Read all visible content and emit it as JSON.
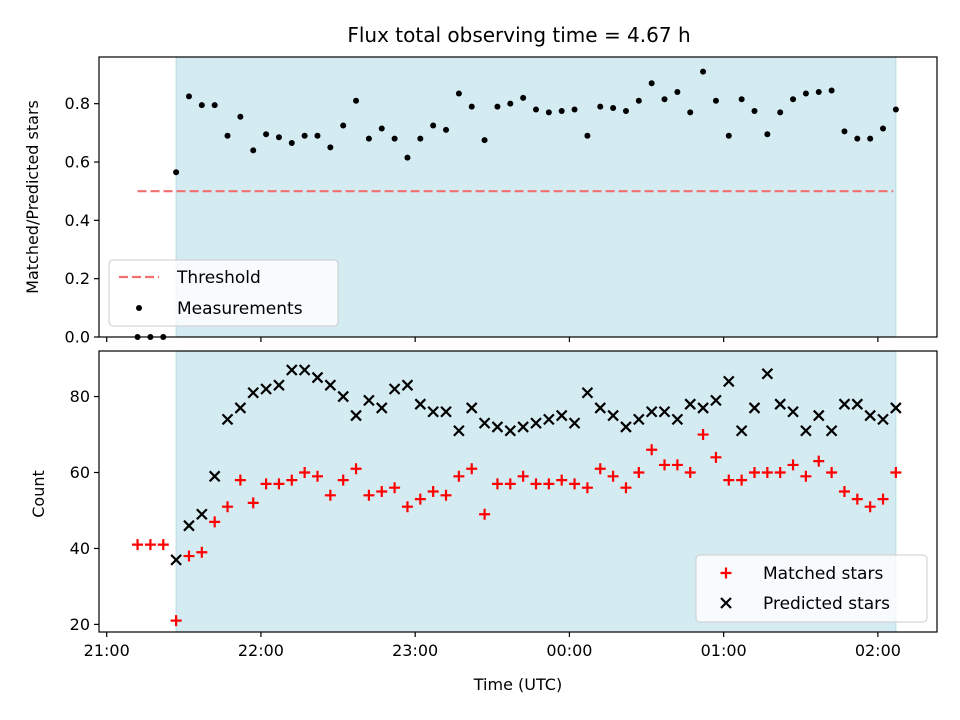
{
  "chart_data": [
    {
      "type": "scatter",
      "title": "Flux total observing time = 4.67 h",
      "ylabel": "Matched/Predicted stars",
      "xlabel": "",
      "ylim": [
        0,
        0.96
      ],
      "yticks": [
        "0.0",
        "0.2",
        "0.4",
        "0.6",
        "0.8"
      ],
      "xticks": [
        "21:00",
        "22:00",
        "23:00",
        "00:00",
        "01:00",
        "02:00"
      ],
      "shaded_span": [
        "21:27",
        "02:07"
      ],
      "threshold": {
        "name": "Threshold",
        "value": 0.5,
        "x_start": "21:12",
        "x_end": "02:06",
        "color": "#f07070"
      },
      "legend": {
        "position": "lower-left",
        "entries": [
          "Threshold",
          "Measurements"
        ]
      },
      "series": [
        {
          "name": "Measurements",
          "color": "#000000",
          "marker": "dot",
          "points": [
            [
              "21:12",
              0.0
            ],
            [
              "21:17",
              0.0
            ],
            [
              "21:22",
              0.0
            ],
            [
              "21:27",
              0.565
            ],
            [
              "21:32",
              0.825
            ],
            [
              "21:37",
              0.795
            ],
            [
              "21:42",
              0.795
            ],
            [
              "21:47",
              0.69
            ],
            [
              "21:52",
              0.755
            ],
            [
              "21:57",
              0.64
            ],
            [
              "22:02",
              0.695
            ],
            [
              "22:07",
              0.685
            ],
            [
              "22:12",
              0.665
            ],
            [
              "22:17",
              0.69
            ],
            [
              "22:22",
              0.69
            ],
            [
              "22:27",
              0.65
            ],
            [
              "22:32",
              0.725
            ],
            [
              "22:37",
              0.81
            ],
            [
              "22:42",
              0.68
            ],
            [
              "22:47",
              0.715
            ],
            [
              "22:52",
              0.68
            ],
            [
              "22:57",
              0.615
            ],
            [
              "23:02",
              0.68
            ],
            [
              "23:07",
              0.725
            ],
            [
              "23:12",
              0.71
            ],
            [
              "23:17",
              0.835
            ],
            [
              "23:22",
              0.79
            ],
            [
              "23:27",
              0.675
            ],
            [
              "23:32",
              0.79
            ],
            [
              "23:37",
              0.8
            ],
            [
              "23:42",
              0.82
            ],
            [
              "23:47",
              0.78
            ],
            [
              "23:52",
              0.77
            ],
            [
              "23:57",
              0.775
            ],
            [
              "00:02",
              0.78
            ],
            [
              "00:07",
              0.69
            ],
            [
              "00:12",
              0.79
            ],
            [
              "00:17",
              0.785
            ],
            [
              "00:22",
              0.775
            ],
            [
              "00:27",
              0.81
            ],
            [
              "00:32",
              0.87
            ],
            [
              "00:37",
              0.815
            ],
            [
              "00:42",
              0.84
            ],
            [
              "00:47",
              0.77
            ],
            [
              "00:52",
              0.91
            ],
            [
              "00:57",
              0.81
            ],
            [
              "01:02",
              0.69
            ],
            [
              "01:07",
              0.815
            ],
            [
              "01:12",
              0.775
            ],
            [
              "01:17",
              0.695
            ],
            [
              "01:22",
              0.77
            ],
            [
              "01:27",
              0.815
            ],
            [
              "01:32",
              0.835
            ],
            [
              "01:37",
              0.84
            ],
            [
              "01:42",
              0.845
            ],
            [
              "01:47",
              0.705
            ],
            [
              "01:52",
              0.68
            ],
            [
              "01:57",
              0.68
            ],
            [
              "02:02",
              0.715
            ],
            [
              "02:07",
              0.78
            ]
          ]
        }
      ]
    },
    {
      "type": "scatter",
      "title": "",
      "ylabel": "Count",
      "xlabel": "Time (UTC)",
      "ylim": [
        18,
        92
      ],
      "yticks": [
        "20",
        "40",
        "60",
        "80"
      ],
      "xticks": [
        "21:00",
        "22:00",
        "23:00",
        "00:00",
        "01:00",
        "02:00"
      ],
      "shaded_span": [
        "21:27",
        "02:07"
      ],
      "legend": {
        "position": "lower-right",
        "entries": [
          "Matched stars",
          "Predicted stars"
        ]
      },
      "series": [
        {
          "name": "Matched stars",
          "color": "#ff0000",
          "marker": "plus",
          "points": [
            [
              "21:12",
              41
            ],
            [
              "21:17",
              41
            ],
            [
              "21:22",
              41
            ],
            [
              "21:27",
              21
            ],
            [
              "21:32",
              38
            ],
            [
              "21:37",
              39
            ],
            [
              "21:42",
              47
            ],
            [
              "21:47",
              51
            ],
            [
              "21:52",
              58
            ],
            [
              "21:57",
              52
            ],
            [
              "22:02",
              57
            ],
            [
              "22:07",
              57
            ],
            [
              "22:12",
              58
            ],
            [
              "22:17",
              60
            ],
            [
              "22:22",
              59
            ],
            [
              "22:27",
              54
            ],
            [
              "22:32",
              58
            ],
            [
              "22:37",
              61
            ],
            [
              "22:42",
              54
            ],
            [
              "22:47",
              55
            ],
            [
              "22:52",
              56
            ],
            [
              "22:57",
              51
            ],
            [
              "23:02",
              53
            ],
            [
              "23:07",
              55
            ],
            [
              "23:12",
              54
            ],
            [
              "23:17",
              59
            ],
            [
              "23:22",
              61
            ],
            [
              "23:27",
              49
            ],
            [
              "23:32",
              57
            ],
            [
              "23:37",
              57
            ],
            [
              "23:42",
              59
            ],
            [
              "23:47",
              57
            ],
            [
              "23:52",
              57
            ],
            [
              "23:57",
              58
            ],
            [
              "00:02",
              57
            ],
            [
              "00:07",
              56
            ],
            [
              "00:12",
              61
            ],
            [
              "00:17",
              59
            ],
            [
              "00:22",
              56
            ],
            [
              "00:27",
              60
            ],
            [
              "00:32",
              66
            ],
            [
              "00:37",
              62
            ],
            [
              "00:42",
              62
            ],
            [
              "00:47",
              60
            ],
            [
              "00:52",
              70
            ],
            [
              "00:57",
              64
            ],
            [
              "01:02",
              58
            ],
            [
              "01:07",
              58
            ],
            [
              "01:12",
              60
            ],
            [
              "01:17",
              60
            ],
            [
              "01:22",
              60
            ],
            [
              "01:27",
              62
            ],
            [
              "01:32",
              59
            ],
            [
              "01:37",
              63
            ],
            [
              "01:42",
              60
            ],
            [
              "01:47",
              55
            ],
            [
              "01:52",
              53
            ],
            [
              "01:57",
              51
            ],
            [
              "02:02",
              53
            ],
            [
              "02:07",
              60
            ]
          ]
        },
        {
          "name": "Predicted stars",
          "color": "#000000",
          "marker": "x",
          "points": [
            [
              "21:27",
              37
            ],
            [
              "21:32",
              46
            ],
            [
              "21:37",
              49
            ],
            [
              "21:42",
              59
            ],
            [
              "21:47",
              74
            ],
            [
              "21:52",
              77
            ],
            [
              "21:57",
              81
            ],
            [
              "22:02",
              82
            ],
            [
              "22:07",
              83
            ],
            [
              "22:12",
              87
            ],
            [
              "22:17",
              87
            ],
            [
              "22:22",
              85
            ],
            [
              "22:27",
              83
            ],
            [
              "22:32",
              80
            ],
            [
              "22:37",
              75
            ],
            [
              "22:42",
              79
            ],
            [
              "22:47",
              77
            ],
            [
              "22:52",
              82
            ],
            [
              "22:57",
              83
            ],
            [
              "23:02",
              78
            ],
            [
              "23:07",
              76
            ],
            [
              "23:12",
              76
            ],
            [
              "23:17",
              71
            ],
            [
              "23:22",
              77
            ],
            [
              "23:27",
              73
            ],
            [
              "23:32",
              72
            ],
            [
              "23:37",
              71
            ],
            [
              "23:42",
              72
            ],
            [
              "23:47",
              73
            ],
            [
              "23:52",
              74
            ],
            [
              "23:57",
              75
            ],
            [
              "00:02",
              73
            ],
            [
              "00:07",
              81
            ],
            [
              "00:12",
              77
            ],
            [
              "00:17",
              75
            ],
            [
              "00:22",
              72
            ],
            [
              "00:27",
              74
            ],
            [
              "00:32",
              76
            ],
            [
              "00:37",
              76
            ],
            [
              "00:42",
              74
            ],
            [
              "00:47",
              78
            ],
            [
              "00:52",
              77
            ],
            [
              "00:57",
              79
            ],
            [
              "01:02",
              84
            ],
            [
              "01:07",
              71
            ],
            [
              "01:12",
              77
            ],
            [
              "01:17",
              86
            ],
            [
              "01:22",
              78
            ],
            [
              "01:27",
              76
            ],
            [
              "01:32",
              71
            ],
            [
              "01:37",
              75
            ],
            [
              "01:42",
              71
            ],
            [
              "01:47",
              78
            ],
            [
              "01:52",
              78
            ],
            [
              "01:57",
              75
            ],
            [
              "02:02",
              74
            ],
            [
              "02:07",
              77
            ]
          ]
        }
      ]
    }
  ],
  "colors": {
    "shade": "#d4ebf2",
    "shade_edge": "#b8dbe6"
  }
}
